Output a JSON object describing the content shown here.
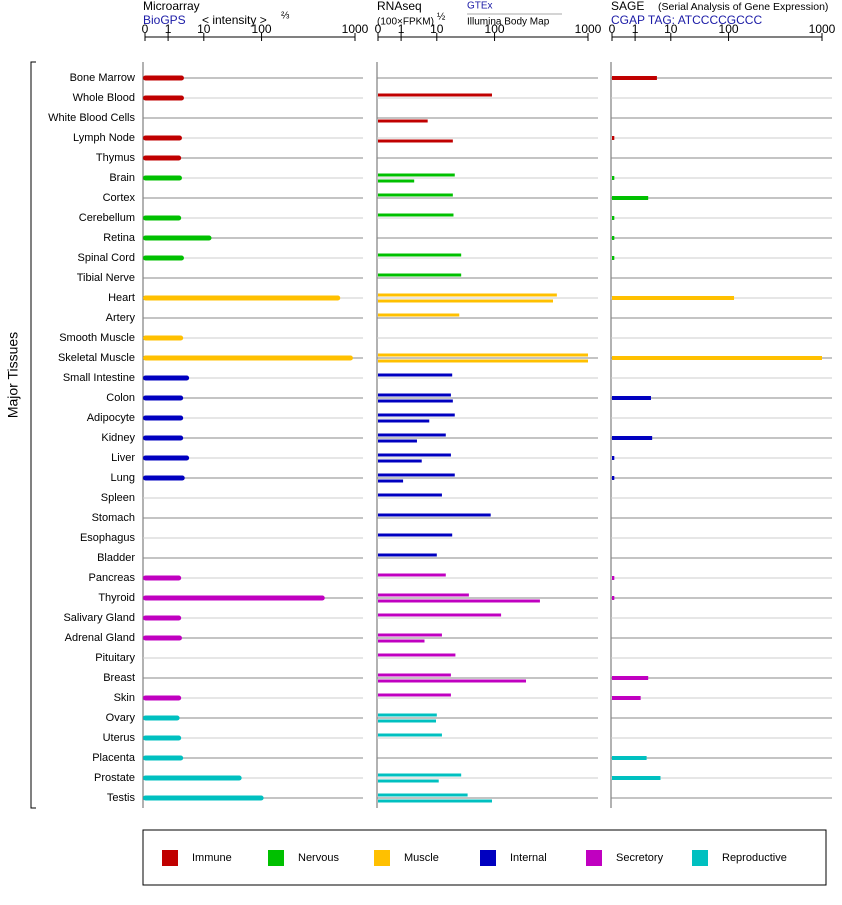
{
  "legend": [
    {
      "name": "Immune",
      "color": "#c00000"
    },
    {
      "name": "Nervous",
      "color": "#00c000"
    },
    {
      "name": "Muscle",
      "color": "#ffc000"
    },
    {
      "name": "Internal",
      "color": "#0000c0"
    },
    {
      "name": "Secretory",
      "color": "#c000c0"
    },
    {
      "name": "Reproductive",
      "color": "#00c0c0"
    }
  ],
  "y_label": "Major Tissues",
  "chart_data": [
    {
      "type": "bar",
      "title": "Microarray",
      "source": "BioGPS",
      "x_label": "< intensity >",
      "x_label_power": "⅔",
      "categories": [
        "Bone Marrow",
        "Whole Blood",
        "White Blood Cells",
        "Lymph Node",
        "Thymus",
        "Brain",
        "Cortex",
        "Cerebellum",
        "Retina",
        "Spinal Cord",
        "Tibial Nerve",
        "Heart",
        "Artery",
        "Smooth Muscle",
        "Skeletal Muscle",
        "Small Intestine",
        "Colon",
        "Adipocyte",
        "Kidney",
        "Liver",
        "Lung",
        "Spleen",
        "Stomach",
        "Esophagus",
        "Bladder",
        "Pancreas",
        "Thyroid",
        "Salivary Gland",
        "Adrenal Gland",
        "Pituitary",
        "Breast",
        "Skin",
        "Ovary",
        "Uterus",
        "Placenta",
        "Prostate",
        "Testis"
      ],
      "category_groups": [
        0,
        0,
        0,
        0,
        0,
        1,
        1,
        1,
        1,
        1,
        1,
        2,
        2,
        2,
        2,
        3,
        3,
        3,
        3,
        3,
        3,
        3,
        3,
        3,
        3,
        4,
        4,
        4,
        4,
        4,
        4,
        4,
        5,
        5,
        5,
        5,
        5
      ],
      "xlim": [
        0,
        1000
      ],
      "xticks": [
        0,
        1,
        10,
        100,
        1000
      ],
      "series": [
        {
          "values": [
            5,
            5,
            null,
            4.5,
            4.3,
            4.5,
            null,
            4.3,
            22,
            5,
            null,
            858,
            null,
            4.8,
            980,
            6.3,
            4.8,
            4.8,
            4.8,
            6.3,
            5.2,
            null,
            null,
            null,
            null,
            4.3,
            709,
            4.3,
            4.5,
            null,
            null,
            4.3,
            3.9,
            4.3,
            4.8,
            69,
            120
          ]
        }
      ]
    },
    {
      "type": "bar",
      "title": "RNAseq",
      "x_label": "(100×FPKM)",
      "x_label_power": "½",
      "xlim": [
        0,
        1000
      ],
      "xticks": [
        0,
        1,
        10,
        100,
        1000
      ],
      "series": [
        {
          "name": "GTEx",
          "values": [
            null,
            96,
            null,
            null,
            null,
            38,
            35,
            36,
            null,
            48,
            48,
            700,
            45,
            null,
            1000,
            34,
            32,
            38,
            24,
            32,
            38,
            18,
            94,
            34,
            10,
            24,
            60,
            163,
            18,
            39,
            32,
            32,
            10,
            18,
            null,
            48,
            58
          ]
        },
        {
          "name": "Illumina Body Map",
          "values": [
            null,
            null,
            7.7,
            35,
            null,
            4.3,
            null,
            null,
            null,
            null,
            null,
            663,
            null,
            null,
            1000,
            null,
            35,
            8.1,
            5,
            6.2,
            1.5,
            null,
            null,
            null,
            null,
            null,
            537,
            null,
            6.9,
            null,
            403,
            null,
            9.8,
            null,
            null,
            13,
            96
          ]
        }
      ]
    },
    {
      "type": "bar",
      "title": "SAGE",
      "subtitle": "(Serial Analysis of Gene Expression)",
      "source": "CGAP TAG: ATCCCCGCCC",
      "xlim": [
        0,
        1000
      ],
      "xticks": [
        0,
        1,
        10,
        100,
        1000
      ],
      "series": [
        {
          "values": [
            6.5,
            null,
            null,
            0.1,
            null,
            0.1,
            4.3,
            0.1,
            0.1,
            0.1,
            null,
            153,
            null,
            null,
            1000,
            null,
            5,
            null,
            5.3,
            0.1,
            0.1,
            null,
            null,
            null,
            null,
            0.1,
            0.1,
            null,
            null,
            null,
            4.3,
            2.4,
            null,
            null,
            3.9,
            7.4,
            null
          ]
        }
      ]
    }
  ]
}
